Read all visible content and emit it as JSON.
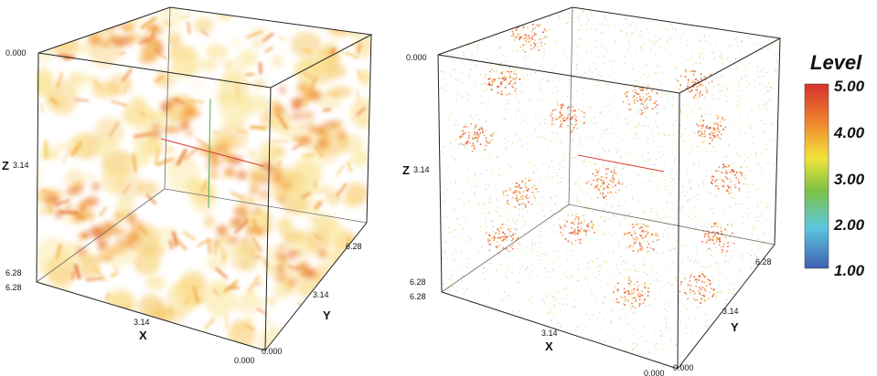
{
  "panels": [
    {
      "id": "left",
      "ticks": {
        "z_top": "0.000",
        "z_mid": "3.14",
        "z_bottom": "6.28",
        "x_left": "6.28",
        "x_mid": "3.14",
        "x_right": "0.000",
        "y_front": "0.000",
        "y_mid": "3.14",
        "y_back": "6.28"
      },
      "axes": {
        "x": "X",
        "y": "Y",
        "z": "Z"
      }
    },
    {
      "id": "right",
      "ticks": {
        "z_top": "0.000",
        "z_mid": "3.14",
        "z_bottom": "6.28",
        "x_left": "6.28",
        "x_mid": "3.14",
        "x_right": "0.000",
        "y_front": "0.000",
        "y_mid": "3.14",
        "y_back": "6.28"
      },
      "axes": {
        "x": "X",
        "y": "Y",
        "z": "Z"
      }
    }
  ],
  "legend": {
    "title": "Level",
    "ticks": [
      "5.00",
      "4.00",
      "3.00",
      "2.00",
      "1.00"
    ],
    "colors": [
      "#d8312a",
      "#f08a2e",
      "#f2e43a",
      "#7cc144",
      "#5cc6e0",
      "#3f5fb0"
    ]
  }
}
